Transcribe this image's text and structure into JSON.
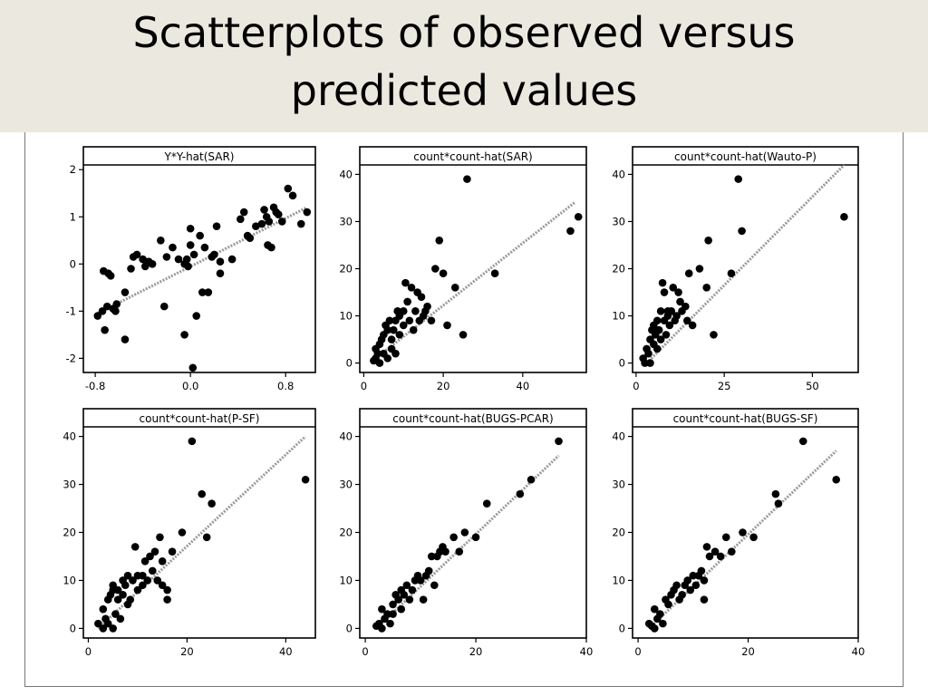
{
  "slide": {
    "title_line1": "Scatterplots of observed versus",
    "title_line2": "predicted values"
  },
  "style": {
    "point_color": "#000000",
    "fit_color": "#9a9a9a",
    "frame_color": "#000000",
    "background": "#ffffff",
    "title_bg": "#ebe9df"
  },
  "chart_data": [
    {
      "type": "scatter",
      "title": "Y*Y-hat(SAR)",
      "xlim": [
        -0.9,
        1.05
      ],
      "ylim": [
        -2.3,
        2.1
      ],
      "xticks": [
        -0.8,
        0.0,
        0.8
      ],
      "xtick_labels": [
        "-0.8",
        "0.0",
        "0.8"
      ],
      "yticks": [
        -2,
        -1,
        0,
        1,
        2
      ],
      "ytick_labels": [
        "-2",
        "-1",
        "0",
        "1",
        "2"
      ],
      "fit": {
        "x": [
          -0.78,
          0.98
        ],
        "y": [
          -1.05,
          1.2
        ]
      },
      "points": [
        [
          -0.78,
          -1.1
        ],
        [
          -0.74,
          -1.0
        ],
        [
          -0.73,
          -0.15
        ],
        [
          -0.72,
          -1.4
        ],
        [
          -0.7,
          -0.9
        ],
        [
          -0.69,
          -0.2
        ],
        [
          -0.67,
          -0.25
        ],
        [
          -0.65,
          -0.95
        ],
        [
          -0.63,
          -1.0
        ],
        [
          -0.62,
          -0.85
        ],
        [
          -0.55,
          -0.6
        ],
        [
          -0.55,
          -1.6
        ],
        [
          -0.5,
          -0.1
        ],
        [
          -0.48,
          0.15
        ],
        [
          -0.45,
          0.2
        ],
        [
          -0.4,
          0.1
        ],
        [
          -0.38,
          -0.05
        ],
        [
          -0.35,
          0.05
        ],
        [
          -0.32,
          0.0
        ],
        [
          -0.25,
          0.5
        ],
        [
          -0.22,
          -0.9
        ],
        [
          -0.2,
          0.15
        ],
        [
          -0.15,
          0.35
        ],
        [
          -0.1,
          0.1
        ],
        [
          -0.05,
          -1.5
        ],
        [
          -0.05,
          0.0
        ],
        [
          -0.03,
          0.1
        ],
        [
          -0.02,
          -0.05
        ],
        [
          0.0,
          0.75
        ],
        [
          0.0,
          0.4
        ],
        [
          0.02,
          -2.2
        ],
        [
          0.03,
          0.2
        ],
        [
          0.05,
          -1.1
        ],
        [
          0.08,
          0.6
        ],
        [
          0.1,
          -0.6
        ],
        [
          0.12,
          0.35
        ],
        [
          0.15,
          -0.6
        ],
        [
          0.18,
          0.15
        ],
        [
          0.2,
          0.2
        ],
        [
          0.22,
          0.8
        ],
        [
          0.25,
          0.05
        ],
        [
          0.25,
          -0.2
        ],
        [
          0.35,
          0.1
        ],
        [
          0.42,
          0.95
        ],
        [
          0.45,
          1.1
        ],
        [
          0.48,
          0.6
        ],
        [
          0.5,
          0.55
        ],
        [
          0.55,
          0.8
        ],
        [
          0.6,
          0.85
        ],
        [
          0.62,
          1.15
        ],
        [
          0.64,
          1.0
        ],
        [
          0.65,
          0.4
        ],
        [
          0.66,
          0.9
        ],
        [
          0.68,
          0.35
        ],
        [
          0.7,
          1.2
        ],
        [
          0.72,
          1.1
        ],
        [
          0.74,
          1.05
        ],
        [
          0.77,
          0.9
        ],
        [
          0.82,
          1.6
        ],
        [
          0.86,
          1.45
        ],
        [
          0.93,
          0.85
        ],
        [
          0.98,
          1.1
        ]
      ]
    },
    {
      "type": "scatter",
      "title": "count*count-hat(SAR)",
      "xlim": [
        -1,
        56
      ],
      "ylim": [
        -2,
        42
      ],
      "xticks": [
        0,
        20,
        40
      ],
      "xtick_labels": [
        "0",
        "20",
        "40"
      ],
      "yticks": [
        0,
        10,
        20,
        30,
        40
      ],
      "ytick_labels": [
        "0",
        "10",
        "20",
        "30",
        "40"
      ],
      "fit": {
        "x": [
          3,
          53
        ],
        "y": [
          1,
          34
        ]
      },
      "points": [
        [
          2.5,
          0.5
        ],
        [
          3,
          1
        ],
        [
          3.5,
          2
        ],
        [
          4,
          0
        ],
        [
          3,
          3
        ],
        [
          4,
          4
        ],
        [
          4.5,
          5
        ],
        [
          5,
          2
        ],
        [
          5,
          6
        ],
        [
          5.5,
          8
        ],
        [
          6,
          1
        ],
        [
          6,
          7
        ],
        [
          6.5,
          9
        ],
        [
          7,
          3
        ],
        [
          7,
          5
        ],
        [
          7.5,
          7
        ],
        [
          8,
          9
        ],
        [
          8,
          2
        ],
        [
          8.5,
          11
        ],
        [
          9,
          6
        ],
        [
          9,
          10
        ],
        [
          10,
          11
        ],
        [
          10,
          8
        ],
        [
          10.5,
          17
        ],
        [
          11,
          13
        ],
        [
          11.5,
          9
        ],
        [
          12,
          16
        ],
        [
          12.5,
          7
        ],
        [
          13,
          11
        ],
        [
          13.5,
          15
        ],
        [
          14,
          9
        ],
        [
          14.5,
          14
        ],
        [
          15,
          10
        ],
        [
          15.5,
          11
        ],
        [
          16,
          12
        ],
        [
          17,
          9
        ],
        [
          18,
          20
        ],
        [
          19,
          26
        ],
        [
          20,
          19
        ],
        [
          21,
          8
        ],
        [
          23,
          16
        ],
        [
          25,
          6
        ],
        [
          26,
          39
        ],
        [
          33,
          19
        ],
        [
          52,
          28
        ],
        [
          54,
          31
        ]
      ]
    },
    {
      "type": "scatter",
      "title": "count*count-hat(Wauto-P)",
      "xlim": [
        -1,
        63
      ],
      "ylim": [
        -2,
        42
      ],
      "xticks": [
        0,
        25,
        50
      ],
      "xtick_labels": [
        "0",
        "25",
        "50"
      ],
      "yticks": [
        0,
        10,
        20,
        30,
        40
      ],
      "ytick_labels": [
        "0",
        "10",
        "20",
        "30",
        "40"
      ],
      "fit": {
        "x": [
          3,
          59
        ],
        "y": [
          0,
          42
        ]
      },
      "points": [
        [
          2,
          1
        ],
        [
          2.5,
          0
        ],
        [
          3,
          3
        ],
        [
          3.5,
          2
        ],
        [
          4,
          5
        ],
        [
          4,
          0
        ],
        [
          4.5,
          7
        ],
        [
          5,
          4
        ],
        [
          5,
          8
        ],
        [
          5.5,
          6
        ],
        [
          6,
          9
        ],
        [
          6,
          3
        ],
        [
          6.5,
          7
        ],
        [
          7,
          5
        ],
        [
          7,
          11
        ],
        [
          7.5,
          17
        ],
        [
          8,
          9
        ],
        [
          8,
          15
        ],
        [
          8.5,
          6
        ],
        [
          9,
          10
        ],
        [
          9,
          11
        ],
        [
          9.5,
          8
        ],
        [
          10,
          11
        ],
        [
          10.5,
          16
        ],
        [
          11,
          9
        ],
        [
          11.5,
          10
        ],
        [
          12,
          15
        ],
        [
          12.5,
          13
        ],
        [
          13,
          11
        ],
        [
          14,
          12
        ],
        [
          14.5,
          9
        ],
        [
          15,
          19
        ],
        [
          16,
          8
        ],
        [
          18,
          20
        ],
        [
          20,
          16
        ],
        [
          20.5,
          26
        ],
        [
          22,
          6
        ],
        [
          27,
          19
        ],
        [
          29,
          39
        ],
        [
          30,
          28
        ],
        [
          59,
          31
        ]
      ]
    },
    {
      "type": "scatter",
      "title": "count*count-hat(P-SF)",
      "xlim": [
        -1,
        46
      ],
      "ylim": [
        -2,
        42
      ],
      "xticks": [
        0,
        20,
        40
      ],
      "xtick_labels": [
        "0",
        "20",
        "40"
      ],
      "yticks": [
        0,
        10,
        20,
        30,
        40
      ],
      "ytick_labels": [
        "0",
        "10",
        "20",
        "30",
        "40"
      ],
      "fit": {
        "x": [
          2,
          44
        ],
        "y": [
          0,
          40
        ]
      },
      "points": [
        [
          2,
          1
        ],
        [
          3,
          0
        ],
        [
          3,
          4
        ],
        [
          3.5,
          2
        ],
        [
          4,
          1
        ],
        [
          4,
          6
        ],
        [
          4.5,
          7
        ],
        [
          5,
          0
        ],
        [
          5,
          8
        ],
        [
          5,
          9
        ],
        [
          5.5,
          3
        ],
        [
          6,
          6
        ],
        [
          6,
          8
        ],
        [
          6.5,
          2
        ],
        [
          7,
          7
        ],
        [
          7,
          10
        ],
        [
          7.5,
          9
        ],
        [
          8,
          5
        ],
        [
          8,
          11
        ],
        [
          8.5,
          6
        ],
        [
          9,
          10
        ],
        [
          9.5,
          17
        ],
        [
          10,
          8
        ],
        [
          10,
          11
        ],
        [
          11,
          9
        ],
        [
          11,
          11
        ],
        [
          11.5,
          14
        ],
        [
          12,
          10
        ],
        [
          12.5,
          15
        ],
        [
          13,
          12
        ],
        [
          13.5,
          16
        ],
        [
          14,
          10
        ],
        [
          14.5,
          19
        ],
        [
          15,
          9
        ],
        [
          15,
          14
        ],
        [
          16,
          6
        ],
        [
          16,
          8
        ],
        [
          17,
          16
        ],
        [
          19,
          20
        ],
        [
          21,
          39
        ],
        [
          23,
          28
        ],
        [
          24,
          19
        ],
        [
          25,
          26
        ],
        [
          44,
          31
        ]
      ]
    },
    {
      "type": "scatter",
      "title": "count*count-hat(BUGS-PCAR)",
      "xlim": [
        -1,
        40
      ],
      "ylim": [
        -2,
        42
      ],
      "xticks": [
        0,
        20,
        40
      ],
      "xtick_labels": [
        "0",
        "20",
        "40"
      ],
      "yticks": [
        0,
        10,
        20,
        30,
        40
      ],
      "ytick_labels": [
        "0",
        "10",
        "20",
        "30",
        "40"
      ],
      "fit": {
        "x": [
          2,
          35
        ],
        "y": [
          0,
          36
        ]
      },
      "points": [
        [
          2,
          0.5
        ],
        [
          2.5,
          1
        ],
        [
          3,
          0
        ],
        [
          3,
          4
        ],
        [
          3.5,
          2
        ],
        [
          4,
          3
        ],
        [
          4.5,
          1
        ],
        [
          5,
          5
        ],
        [
          5,
          3
        ],
        [
          5.5,
          7
        ],
        [
          6,
          6
        ],
        [
          6.5,
          8
        ],
        [
          6.5,
          4
        ],
        [
          7,
          7
        ],
        [
          7.5,
          9
        ],
        [
          8,
          6
        ],
        [
          8.5,
          8
        ],
        [
          9,
          10
        ],
        [
          9.5,
          11
        ],
        [
          10,
          10
        ],
        [
          10.5,
          6
        ],
        [
          11,
          11
        ],
        [
          11.5,
          12
        ],
        [
          12,
          15
        ],
        [
          12.5,
          9
        ],
        [
          13,
          15
        ],
        [
          13.5,
          16
        ],
        [
          14,
          17
        ],
        [
          14.5,
          16
        ],
        [
          16,
          19
        ],
        [
          17,
          16
        ],
        [
          18,
          20
        ],
        [
          20,
          19
        ],
        [
          22,
          26
        ],
        [
          28,
          28
        ],
        [
          30,
          31
        ],
        [
          35,
          39
        ]
      ]
    },
    {
      "type": "scatter",
      "title": "count*count-hat(BUGS-SF)",
      "xlim": [
        -1,
        40
      ],
      "ylim": [
        -2,
        42
      ],
      "xticks": [
        0,
        20,
        40
      ],
      "xtick_labels": [
        "0",
        "20",
        "40"
      ],
      "yticks": [
        0,
        10,
        20,
        30,
        40
      ],
      "ytick_labels": [
        "0",
        "10",
        "20",
        "30",
        "40"
      ],
      "fit": {
        "x": [
          2,
          36
        ],
        "y": [
          0,
          37
        ]
      },
      "points": [
        [
          2,
          1
        ],
        [
          2.5,
          0.5
        ],
        [
          3,
          0
        ],
        [
          3,
          4
        ],
        [
          3.5,
          2
        ],
        [
          4,
          3
        ],
        [
          4.5,
          1
        ],
        [
          5,
          6
        ],
        [
          5.5,
          5
        ],
        [
          6,
          7
        ],
        [
          6.5,
          8
        ],
        [
          7,
          9
        ],
        [
          7.5,
          6
        ],
        [
          8,
          7
        ],
        [
          8.5,
          9
        ],
        [
          9,
          10
        ],
        [
          9.5,
          8
        ],
        [
          10,
          11
        ],
        [
          10.5,
          9
        ],
        [
          11,
          11
        ],
        [
          11.5,
          12
        ],
        [
          12,
          10
        ],
        [
          12,
          6
        ],
        [
          12.5,
          17
        ],
        [
          13,
          15
        ],
        [
          14,
          16
        ],
        [
          15,
          15
        ],
        [
          16,
          19
        ],
        [
          17,
          16
        ],
        [
          19,
          20
        ],
        [
          21,
          19
        ],
        [
          25,
          28
        ],
        [
          25.5,
          26
        ],
        [
          30,
          39
        ],
        [
          36,
          31
        ]
      ]
    }
  ]
}
